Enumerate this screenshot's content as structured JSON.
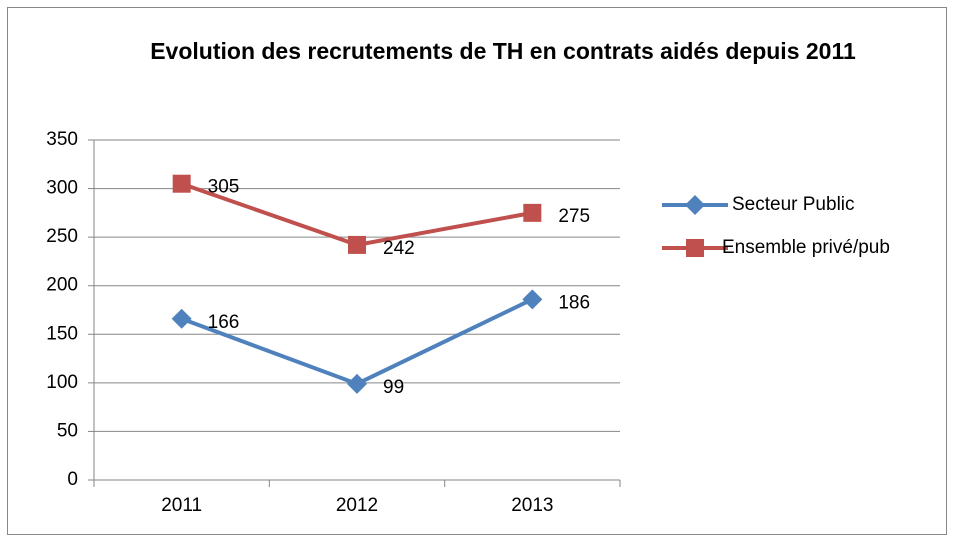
{
  "chart_data": {
    "type": "line",
    "title": "Evolution des recrutements de TH en contrats aidés depuis 2011",
    "categories": [
      "2011",
      "2012",
      "2013"
    ],
    "series": [
      {
        "name": "Secteur Public",
        "color": "#4f81bd",
        "marker": "diamond",
        "values": [
          166,
          99,
          186
        ]
      },
      {
        "name": "Ensemble privé/pub",
        "color": "#c0504d",
        "marker": "square",
        "values": [
          305,
          242,
          275
        ]
      }
    ],
    "ylim": [
      0,
      350
    ],
    "yticks": [
      0,
      50,
      100,
      150,
      200,
      250,
      300,
      350
    ],
    "grid": true,
    "legend": "right"
  }
}
